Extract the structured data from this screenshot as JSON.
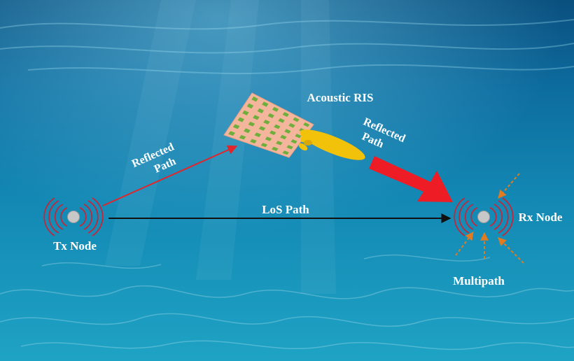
{
  "labels": {
    "tx_node": "Tx Node",
    "rx_node": "Rx Node",
    "acoustic_ris": "Acoustic RIS",
    "los_path": "LoS Path",
    "reflected_path_left_line1": "Reflected",
    "reflected_path_left_line2": "Path",
    "reflected_path_right_line1": "Reflected",
    "reflected_path_right_line2": "Path",
    "multipath": "Multipath"
  },
  "icons": [
    "transmitter-node-icon",
    "receiver-node-icon",
    "ris-panel-icon",
    "beam-lobe-icon"
  ],
  "colors": {
    "water_top": "#0a5a8a",
    "water_bottom": "#1fa7c9",
    "ris_panel": "#f3b69c",
    "ris_element": "#6fae3c",
    "beam": "#f2c10a",
    "los_arrow": "#111111",
    "incident_arrow": "#e0262c",
    "reflected_arrow": "#ee1c25",
    "multipath_arrows": "#e07b22",
    "wave_arcs": "#c2273a",
    "node_core": "#c8c8c8"
  }
}
